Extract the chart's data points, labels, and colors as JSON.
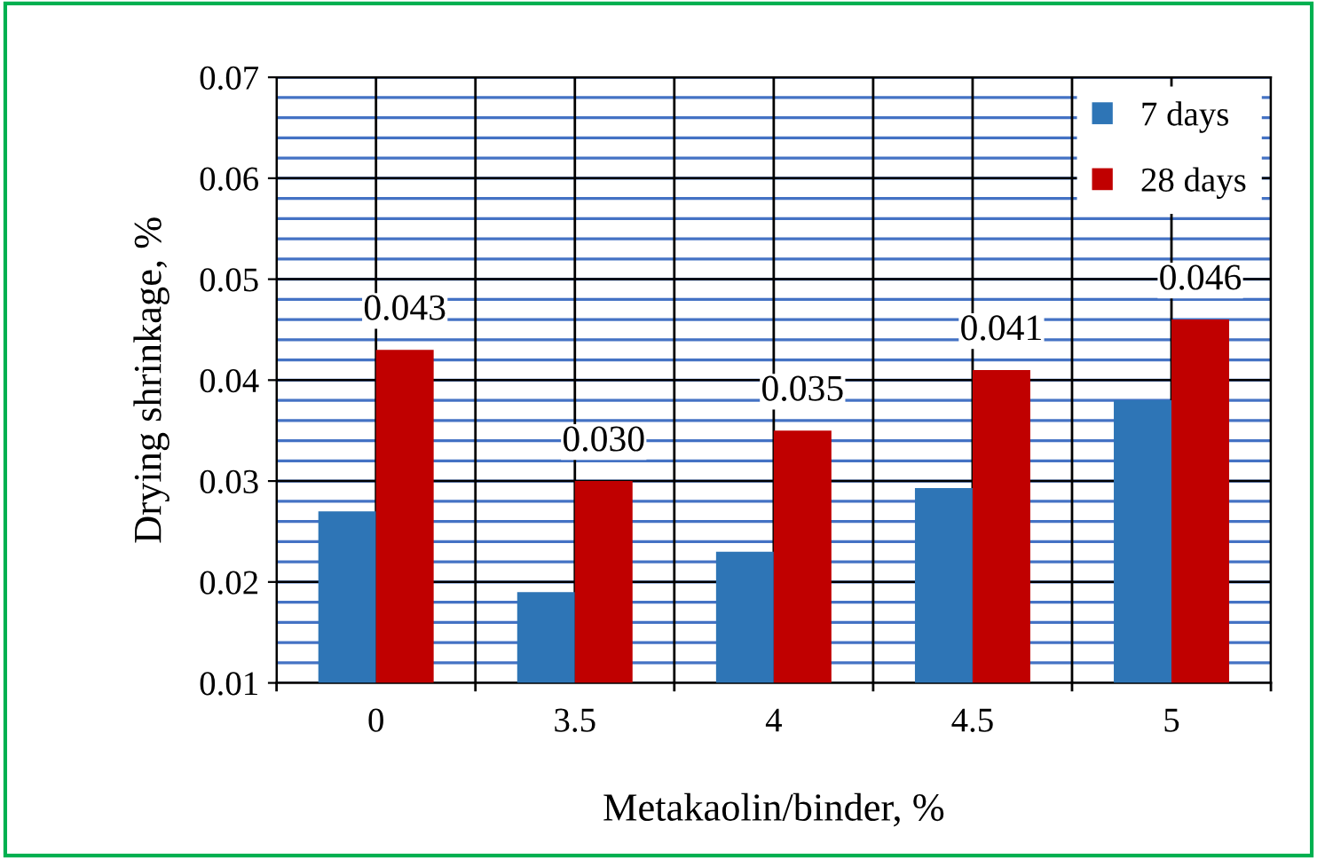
{
  "chart_data": {
    "type": "bar",
    "xlabel": "Metakaolin/binder, %",
    "ylabel": "Drying shrinkage, %",
    "categories": [
      "0",
      "3.5",
      "4",
      "4.5",
      "5"
    ],
    "series": [
      {
        "name": "7 days",
        "color": "#2e75b6",
        "values": [
          0.027,
          0.019,
          0.023,
          0.0293,
          0.038
        ]
      },
      {
        "name": "28 days",
        "color": "#c00000",
        "values": [
          0.043,
          0.03,
          0.035,
          0.041,
          0.046
        ],
        "value_labels": [
          "0.043",
          "0.030",
          "0.035",
          "0.041",
          "0.046"
        ]
      }
    ],
    "ylim": [
      0.01,
      0.07
    ],
    "yticks": [
      0.01,
      0.02,
      0.03,
      0.04,
      0.05,
      0.06,
      0.07
    ],
    "grid": true,
    "legend": "top right"
  }
}
